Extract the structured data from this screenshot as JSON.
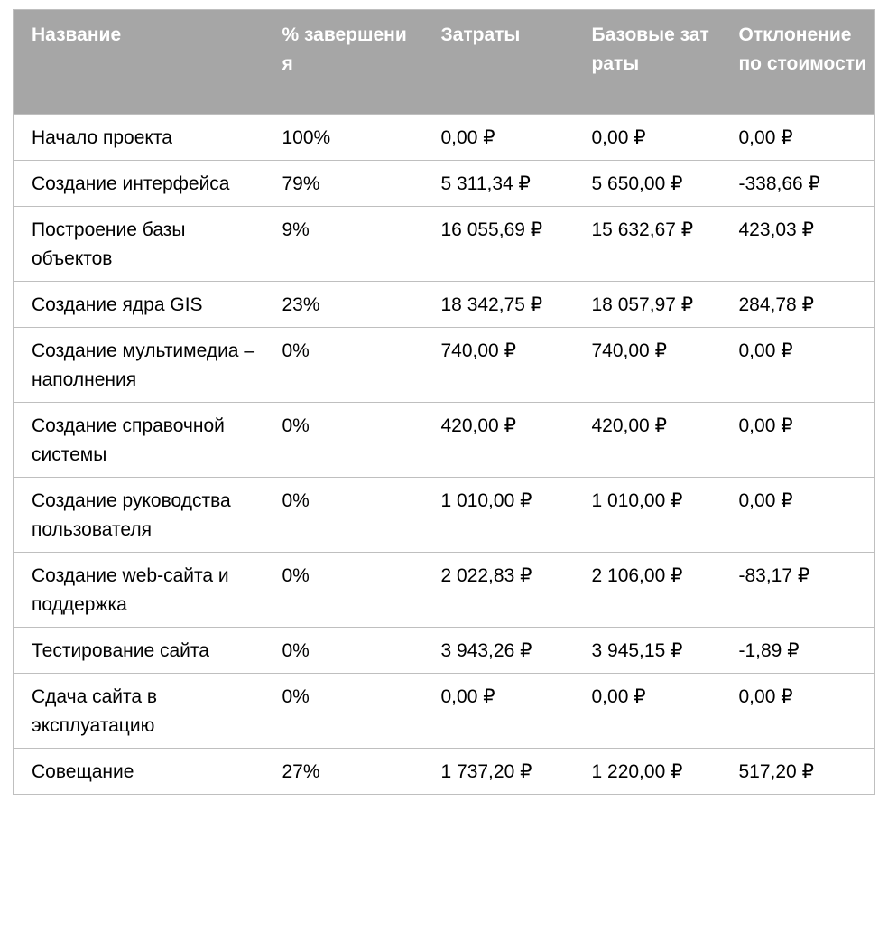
{
  "table": {
    "headers": [
      "Название",
      "% завершения",
      "Затраты",
      "Базовые затраты",
      "Отклонение по стоимости"
    ],
    "rows": [
      [
        "Начало проекта",
        "100%",
        "0,00 ₽",
        "0,00 ₽",
        "0,00 ₽"
      ],
      [
        "Создание интерфейса",
        "79%",
        "5 311,34 ₽",
        "5 650,00 ₽",
        "-338,66 ₽"
      ],
      [
        "Построение базы объектов",
        "9%",
        "16 055,69 ₽",
        "15 632,67 ₽",
        "423,03 ₽"
      ],
      [
        "Создание ядра GIS",
        "23%",
        "18 342,75 ₽",
        "18 057,97 ₽",
        "284,78 ₽"
      ],
      [
        "Создание мультимедиа – наполнения",
        "0%",
        "740,00 ₽",
        "740,00 ₽",
        "0,00 ₽"
      ],
      [
        "Создание справочной системы",
        "0%",
        "420,00 ₽",
        "420,00 ₽",
        "0,00 ₽"
      ],
      [
        "Создание руководства пользователя",
        "0%",
        "1 010,00 ₽",
        "1 010,00 ₽",
        "0,00 ₽"
      ],
      [
        "Создание web-сайта и поддержка",
        "0%",
        "2 022,83 ₽",
        "2 106,00 ₽",
        "-83,17 ₽"
      ],
      [
        "Тестирование сайта",
        "0%",
        "3 943,26 ₽",
        "3 945,15 ₽",
        "-1,89 ₽"
      ],
      [
        "Сдача сайта в эксплуатацию",
        "0%",
        "0,00 ₽",
        "0,00 ₽",
        "0,00 ₽"
      ],
      [
        "Совещание",
        "27%",
        "1 737,20 ₽",
        "1 220,00 ₽",
        "517,20 ₽"
      ]
    ]
  }
}
